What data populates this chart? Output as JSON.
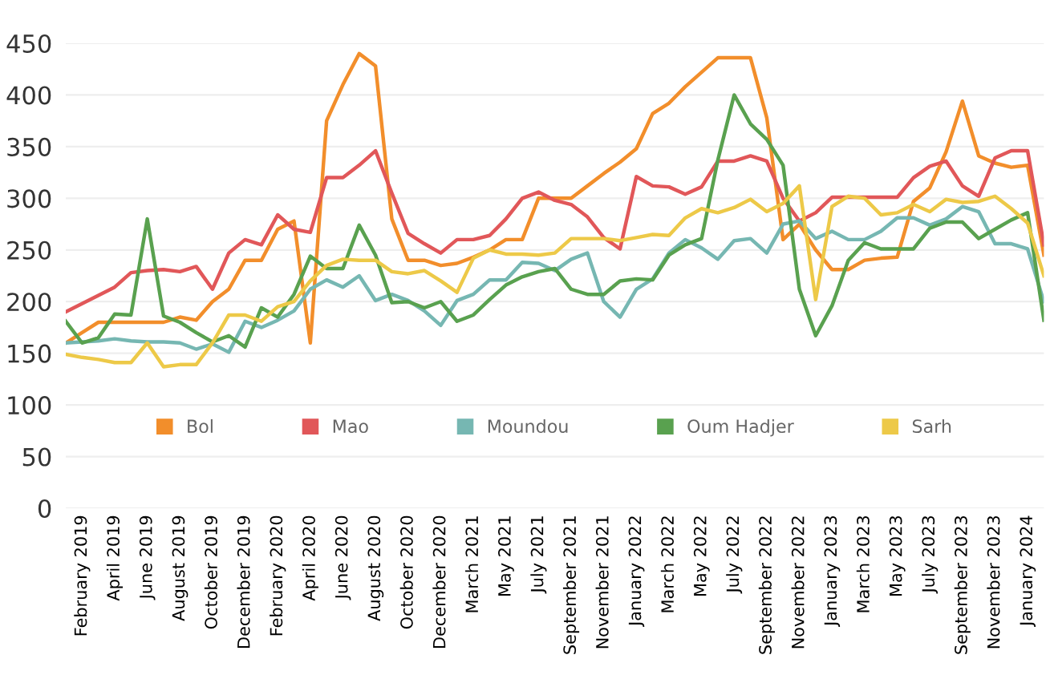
{
  "chart_data": {
    "type": "line",
    "categories": [
      null,
      "February 2019",
      null,
      "April 2019",
      null,
      "June 2019",
      null,
      "August 2019",
      null,
      "October 2019",
      null,
      "December 2019",
      null,
      "February 2020",
      null,
      "April 2020",
      null,
      "June 2020",
      null,
      "August 2020",
      null,
      "October 2020",
      null,
      "December 2020",
      null,
      "March 2021",
      null,
      "May 2021",
      null,
      "July 2021",
      null,
      "September 2021",
      null,
      "November 2021",
      null,
      "January 2022",
      null,
      "March 2022",
      null,
      "May 2022",
      null,
      "July 2022",
      null,
      "September 2022",
      null,
      "November 2022",
      null,
      "January 2023",
      null,
      "March 2023",
      null,
      "May 2023",
      null,
      "July 2023",
      null,
      "September 2023",
      null,
      "November 2023",
      null,
      "January 2024",
      null
    ],
    "series": [
      {
        "name": "Bol",
        "color": "#f28e2b",
        "values": [
          160,
          170,
          180,
          180,
          180,
          180,
          180,
          185,
          182,
          200,
          212,
          240,
          240,
          270,
          278,
          160,
          375,
          410,
          440,
          428,
          280,
          240,
          240,
          235,
          237,
          243,
          250,
          260,
          260,
          300,
          300,
          300,
          312,
          324,
          335,
          348,
          382,
          392,
          408,
          422,
          436,
          436,
          436,
          378,
          260,
          275,
          250,
          231,
          231,
          240,
          242,
          243,
          297,
          310,
          345,
          394,
          341,
          334,
          330,
          332,
          245
        ]
      },
      {
        "name": "Mao",
        "color": "#e15759",
        "values": [
          190,
          198,
          206,
          214,
          228,
          230,
          231,
          229,
          234,
          212,
          247,
          260,
          255,
          284,
          270,
          267,
          320,
          320,
          332,
          346,
          305,
          266,
          256,
          247,
          260,
          260,
          264,
          280,
          300,
          306,
          298,
          294,
          282,
          262,
          251,
          321,
          312,
          311,
          304,
          311,
          336,
          336,
          341,
          336,
          300,
          278,
          286,
          301,
          301,
          301,
          301,
          301,
          320,
          331,
          336,
          312,
          302,
          339,
          346,
          346,
          255
        ]
      },
      {
        "name": "Moundou",
        "color": "#76b7b2",
        "values": [
          160,
          161,
          162,
          164,
          162,
          161,
          161,
          160,
          154,
          159,
          151,
          181,
          175,
          182,
          191,
          212,
          221,
          214,
          225,
          201,
          207,
          201,
          191,
          177,
          201,
          207,
          221,
          221,
          238,
          237,
          230,
          241,
          247,
          200,
          185,
          212,
          222,
          247,
          260,
          252,
          241,
          259,
          261,
          247,
          275,
          278,
          261,
          268,
          260,
          260,
          268,
          281,
          281,
          274,
          280,
          292,
          287,
          256,
          256,
          251,
          200
        ]
      },
      {
        "name": "Oum Hadjer",
        "color": "#59a14f",
        "values": [
          181,
          160,
          165,
          188,
          187,
          280,
          186,
          180,
          170,
          161,
          167,
          156,
          194,
          185,
          207,
          244,
          232,
          232,
          274,
          245,
          199,
          200,
          194,
          200,
          181,
          187,
          202,
          216,
          224,
          229,
          232,
          212,
          207,
          207,
          220,
          222,
          221,
          245,
          255,
          261,
          337,
          400,
          372,
          357,
          332,
          212,
          167,
          196,
          240,
          257,
          251,
          251,
          251,
          271,
          277,
          277,
          261,
          270,
          279,
          286,
          182
        ]
      },
      {
        "name": "Sarh",
        "color": "#edc948",
        "values": [
          149,
          146,
          144,
          141,
          141,
          160,
          137,
          139,
          139,
          160,
          187,
          187,
          181,
          195,
          200,
          220,
          235,
          241,
          240,
          240,
          229,
          227,
          230,
          220,
          209,
          242,
          250,
          246,
          246,
          245,
          247,
          261,
          261,
          261,
          259,
          262,
          265,
          264,
          281,
          290,
          286,
          291,
          299,
          287,
          295,
          312,
          202,
          292,
          302,
          300,
          284,
          286,
          294,
          287,
          299,
          296,
          297,
          302,
          290,
          276,
          225
        ]
      }
    ],
    "ylim": [
      0,
      450
    ],
    "yticks": [
      0,
      50,
      100,
      150,
      200,
      250,
      300,
      350,
      400,
      450
    ],
    "grid": "y",
    "legend": "bottom",
    "marker": "none",
    "line_style": "solid"
  }
}
